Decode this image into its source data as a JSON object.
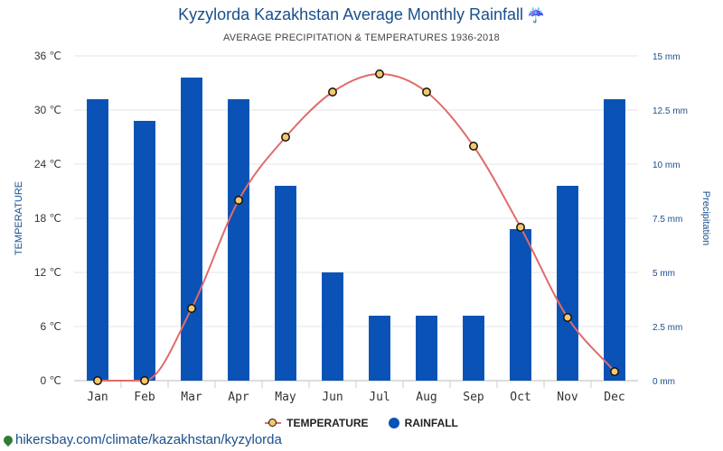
{
  "header": {
    "title": "Kyzylorda Kazakhstan Average Monthly Rainfall",
    "title_icon": "umbrella-rain-icon",
    "subtitle": "AVERAGE PRECIPITATION & TEMPERATURES 1936-2018"
  },
  "legend": {
    "temperature": "TEMPERATURE",
    "rainfall": "RAINFALL"
  },
  "footer": {
    "url": "hikersbay.com/climate/kazakhstan/kyzylorda",
    "icon": "location-pin-icon"
  },
  "colors": {
    "bars": "#0a52b5",
    "line": "#e06b6b",
    "point_fill": "#f5c86a",
    "point_stroke": "#111111",
    "title": "#1a4f8b",
    "right_axis": "#1a4f8b"
  },
  "chart_data": {
    "type": "bar",
    "categories": [
      "Jan",
      "Feb",
      "Mar",
      "Apr",
      "May",
      "Jun",
      "Jul",
      "Aug",
      "Sep",
      "Oct",
      "Nov",
      "Dec"
    ],
    "series": [
      {
        "name": "RAINFALL",
        "type": "bar",
        "axis": "right",
        "values": [
          13,
          12,
          14,
          13,
          9,
          5,
          3,
          3,
          3,
          7,
          9,
          13
        ]
      },
      {
        "name": "TEMPERATURE",
        "type": "line",
        "axis": "left",
        "values": [
          0,
          0,
          8,
          20,
          27,
          32,
          34,
          32,
          26,
          17,
          7,
          1
        ]
      }
    ],
    "ylabel_left": "TEMPERATURE",
    "ylabel_right": "Precipitation",
    "ylim_left": [
      0,
      36
    ],
    "ylim_right": [
      0,
      15
    ],
    "yticks_left": [
      "0 ℃",
      "6 ℃",
      "12 ℃",
      "18 ℃",
      "24 ℃",
      "30 ℃",
      "36 ℃"
    ],
    "yticks_right": [
      "0 mm",
      "2.5 mm",
      "5 mm",
      "7.5 mm",
      "10 mm",
      "12.5 mm",
      "15 mm"
    ],
    "grid": true,
    "legend_position": "bottom-center"
  }
}
